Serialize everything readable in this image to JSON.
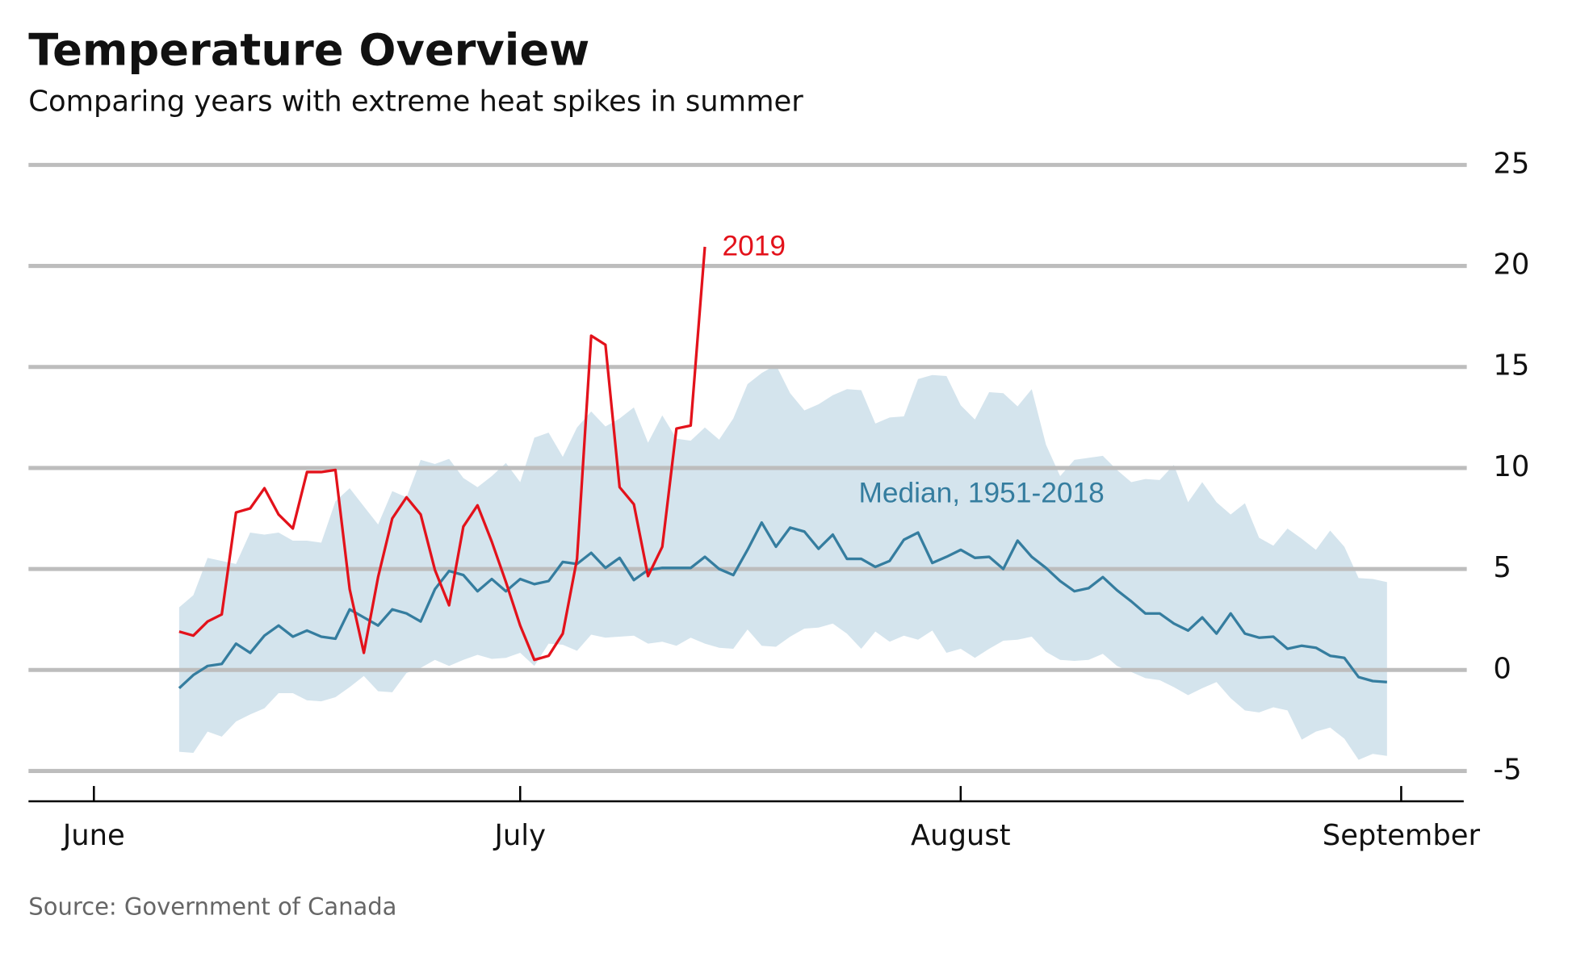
{
  "chart_data": {
    "type": "line",
    "title": "Temperature Overview",
    "subtitle": "Comparing years with extreme heat spikes in summer",
    "source": "Source: Government of Canada",
    "x": [
      6,
      7,
      8,
      9,
      10,
      11,
      12,
      13,
      14,
      15,
      16,
      17,
      18,
      19,
      20,
      21,
      22,
      23,
      24,
      25,
      26,
      27,
      28,
      29,
      30,
      31,
      32,
      33,
      34,
      35,
      36,
      37,
      38,
      39,
      40,
      41,
      42,
      43,
      44,
      45,
      46,
      47,
      48,
      49,
      50,
      51,
      52,
      53,
      54,
      55,
      56,
      57,
      58,
      59,
      60,
      61,
      62,
      63,
      64,
      65,
      66,
      67,
      68,
      69,
      70,
      71,
      72,
      73,
      74,
      75,
      76,
      77,
      78,
      79,
      80,
      81,
      82,
      83,
      84,
      85,
      86,
      87,
      88,
      89,
      90,
      91
    ],
    "xlim": [
      -4.6,
      96.4
    ],
    "xticks": [
      {
        "value": 0,
        "label": "June"
      },
      {
        "value": 30,
        "label": "July"
      },
      {
        "value": 61,
        "label": "August"
      },
      {
        "value": 92,
        "label": "September"
      }
    ],
    "ylim": [
      -6.5,
      25
    ],
    "yticks": [
      -5,
      0,
      5,
      10,
      15,
      20,
      25
    ],
    "grid": true,
    "band": {
      "color": "#d4e4ed",
      "high": [
        3.1,
        3.7,
        5.55,
        5.4,
        5.25,
        6.8,
        6.7,
        6.8,
        6.4,
        6.4,
        6.3,
        8.35,
        9.0,
        8.1,
        7.2,
        8.85,
        8.55,
        10.4,
        10.2,
        10.45,
        9.5,
        9.05,
        9.6,
        10.25,
        9.3,
        11.5,
        11.75,
        10.55,
        12.0,
        12.8,
        12.05,
        12.45,
        13.0,
        11.25,
        12.6,
        11.45,
        11.35,
        12.0,
        11.4,
        12.45,
        14.15,
        14.7,
        15.1,
        13.7,
        12.85,
        13.15,
        13.6,
        13.9,
        13.85,
        12.2,
        12.5,
        12.55,
        14.4,
        14.6,
        14.55,
        13.1,
        12.4,
        13.75,
        13.7,
        13.05,
        13.9,
        11.15,
        9.6,
        10.4,
        10.5,
        10.6,
        9.9,
        9.3,
        9.45,
        9.4,
        10.15,
        8.3,
        9.3,
        8.3,
        7.7,
        8.25,
        6.55,
        6.15,
        7.0,
        6.5,
        5.95,
        6.9,
        6.1,
        4.55,
        4.5,
        4.35
      ],
      "low": [
        -4.05,
        -4.1,
        -3.05,
        -3.3,
        -2.55,
        -2.2,
        -1.9,
        -1.15,
        -1.15,
        -1.5,
        -1.55,
        -1.35,
        -0.85,
        -0.3,
        -1.05,
        -1.1,
        -0.15,
        0.1,
        0.5,
        0.2,
        0.5,
        0.75,
        0.55,
        0.6,
        0.85,
        0.2,
        1.3,
        1.25,
        0.95,
        1.75,
        1.6,
        1.65,
        1.7,
        1.3,
        1.4,
        1.2,
        1.6,
        1.3,
        1.1,
        1.05,
        2.0,
        1.2,
        1.15,
        1.65,
        2.05,
        2.1,
        2.3,
        1.8,
        1.05,
        1.9,
        1.4,
        1.7,
        1.5,
        1.95,
        0.85,
        1.05,
        0.6,
        1.05,
        1.45,
        1.5,
        1.65,
        0.9,
        0.5,
        0.45,
        0.5,
        0.8,
        0.2,
        -0.1,
        -0.4,
        -0.5,
        -0.85,
        -1.25,
        -0.9,
        -0.6,
        -1.4,
        -2.0,
        -2.1,
        -1.85,
        -2.0,
        -3.45,
        -3.05,
        -2.85,
        -3.4,
        -4.45,
        -4.15,
        -4.25
      ]
    },
    "series": [
      {
        "name": "Median, 1951-2018",
        "color": "#357d9f",
        "values": [
          -0.9,
          -0.25,
          0.2,
          0.3,
          1.3,
          0.85,
          1.7,
          2.2,
          1.65,
          1.95,
          1.65,
          1.55,
          3.0,
          2.6,
          2.2,
          3.0,
          2.8,
          2.4,
          4.0,
          4.9,
          4.7,
          3.9,
          4.5,
          3.9,
          4.5,
          4.25,
          4.4,
          5.35,
          5.25,
          5.8,
          5.05,
          5.55,
          4.45,
          4.95,
          5.05,
          5.05,
          5.05,
          5.6,
          5.0,
          4.7,
          5.95,
          7.3,
          6.1,
          7.05,
          6.85,
          6.0,
          6.7,
          5.5,
          5.5,
          5.1,
          5.4,
          6.45,
          6.8,
          5.3,
          5.6,
          5.95,
          5.55,
          5.6,
          5.0,
          6.4,
          5.6,
          5.05,
          4.4,
          3.9,
          4.05,
          4.6,
          3.95,
          3.4,
          2.8,
          2.8,
          2.3,
          1.95,
          2.6,
          1.8,
          2.8,
          1.8,
          1.6,
          1.65,
          1.05,
          1.2,
          1.1,
          0.7,
          0.6,
          -0.35,
          -0.55,
          -0.6
        ]
      },
      {
        "name": "2019",
        "color": "#e3121b",
        "values": [
          1.9,
          1.7,
          2.4,
          2.75,
          7.8,
          8.0,
          9.0,
          7.7,
          7.0,
          9.8,
          9.8,
          9.9,
          4.0,
          0.85,
          4.6,
          7.5,
          8.55,
          7.7,
          4.95,
          3.2,
          7.1,
          8.15,
          6.35,
          4.35,
          2.2,
          0.5,
          0.7,
          1.8,
          5.5,
          16.55,
          16.1,
          9.05,
          8.2,
          4.65,
          6.1,
          11.95,
          12.1,
          20.95,
          null,
          null,
          null,
          null,
          null,
          null,
          null,
          null,
          null,
          null,
          null,
          null,
          null,
          null,
          null,
          null,
          null,
          null,
          null,
          null,
          null,
          null,
          null,
          null,
          null,
          null,
          null,
          null,
          null,
          null,
          null,
          null,
          null,
          null,
          null,
          null,
          null,
          null,
          null,
          null,
          null,
          null,
          null,
          null,
          null,
          null,
          null,
          null
        ]
      }
    ]
  }
}
